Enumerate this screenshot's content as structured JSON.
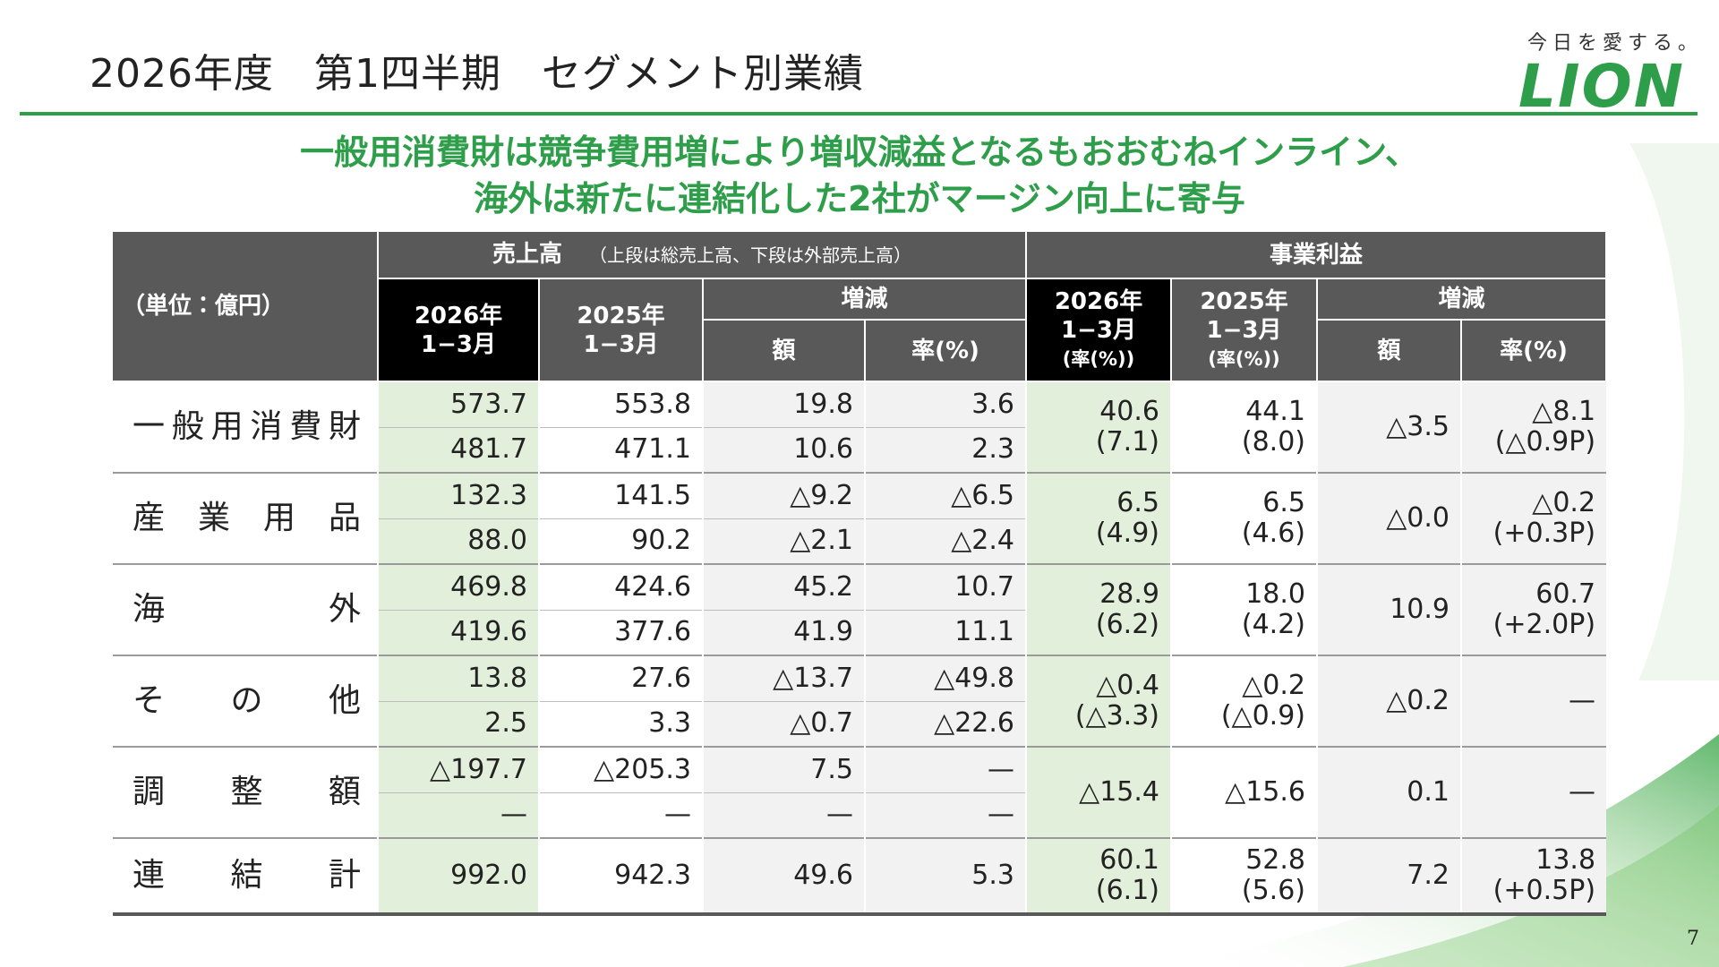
{
  "header": {
    "title": "2026年度　第1四半期　セグメント別業績",
    "tagline": "今日を愛する。",
    "logo": "LION"
  },
  "headline": [
    "一般用消費財は競争費用増により増収減益となるもおおむねインライン、",
    "海外は新たに連結化した2社がマージン向上に寄与"
  ],
  "table": {
    "unit": "（単位：億円）",
    "sales_header": "売上高",
    "sales_note": "（上段は総売上高、下段は外部売上高）",
    "profit_header": "事業利益",
    "sales_2026": [
      "2026年",
      "1−3月"
    ],
    "sales_2025": [
      "2025年",
      "1−3月"
    ],
    "change": "増減",
    "amount": "額",
    "rate": "率(%)",
    "profit_2026": [
      "2026年",
      "1−3月",
      "(率(%))"
    ],
    "profit_2025": [
      "2025年",
      "1−3月",
      "(率(%))"
    ],
    "profit_change": "増減",
    "profit_amount": "額",
    "profit_rate": "率(%)",
    "rows": [
      {
        "label": "一般用消費財",
        "sales": [
          [
            "573.7",
            "553.8",
            "19.8",
            "3.6"
          ],
          [
            "481.7",
            "471.1",
            "10.6",
            "2.3"
          ]
        ],
        "profit": [
          [
            "40.6",
            "(7.1)"
          ],
          [
            "44.1",
            "(8.0)"
          ],
          [
            "△3.5"
          ],
          [
            "△8.1",
            "(△0.9P)"
          ]
        ]
      },
      {
        "label": "産業用品",
        "sales": [
          [
            "132.3",
            "141.5",
            "△9.2",
            "△6.5"
          ],
          [
            "88.0",
            "90.2",
            "△2.1",
            "△2.4"
          ]
        ],
        "profit": [
          [
            "6.5",
            "(4.9)"
          ],
          [
            "6.5",
            "(4.6)"
          ],
          [
            "△0.0"
          ],
          [
            "△0.2",
            "(+0.3P)"
          ]
        ]
      },
      {
        "label": "海外",
        "sales": [
          [
            "469.8",
            "424.6",
            "45.2",
            "10.7"
          ],
          [
            "419.6",
            "377.6",
            "41.9",
            "11.1"
          ]
        ],
        "profit": [
          [
            "28.9",
            "(6.2)"
          ],
          [
            "18.0",
            "(4.2)"
          ],
          [
            "10.9"
          ],
          [
            "60.7",
            "(+2.0P)"
          ]
        ]
      },
      {
        "label": "その他",
        "sales": [
          [
            "13.8",
            "27.6",
            "△13.7",
            "△49.8"
          ],
          [
            "2.5",
            "3.3",
            "△0.7",
            "△22.6"
          ]
        ],
        "profit": [
          [
            "△0.4",
            "(△3.3)"
          ],
          [
            "△0.2",
            "(△0.9)"
          ],
          [
            "△0.2"
          ],
          [
            "—"
          ]
        ]
      },
      {
        "label": "調整額",
        "sales": [
          [
            "△197.7",
            "△205.3",
            "7.5",
            "—"
          ],
          [
            "—",
            "—",
            "—",
            "—"
          ]
        ],
        "profit": [
          [
            "△15.4"
          ],
          [
            "△15.6"
          ],
          [
            "0.1"
          ],
          [
            "—"
          ]
        ]
      },
      {
        "label": "連結計",
        "sales": [
          [
            "992.0",
            "942.3",
            "49.6",
            "5.3"
          ]
        ],
        "profit": [
          [
            "60.1",
            "(6.1)"
          ],
          [
            "52.8",
            "(5.6)"
          ],
          [
            "7.2"
          ],
          [
            "13.8",
            "(+0.5P)"
          ]
        ]
      }
    ]
  },
  "page_number": "7"
}
